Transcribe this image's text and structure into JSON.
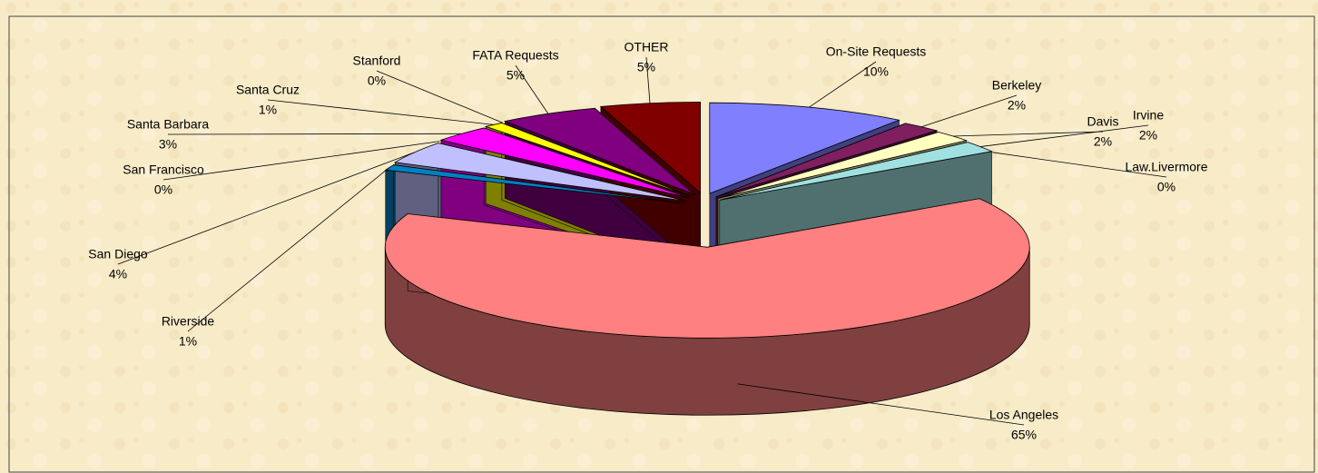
{
  "chart_data": {
    "type": "pie",
    "categories": [
      "On-Site Requests",
      "Berkeley",
      "Davis",
      "Irvine",
      "Law.Livermore",
      "Los Angeles",
      "Riverside",
      "San Diego",
      "San Francisco",
      "Santa Barbara",
      "Santa Cruz",
      "Stanford",
      "FATA Requests",
      "OTHER"
    ],
    "values": [
      10,
      2,
      2,
      2,
      0,
      65,
      1,
      4,
      0,
      3,
      1,
      0,
      5,
      5
    ],
    "value_labels": [
      "10%",
      "2%",
      "2%",
      "2%",
      "0%",
      "65%",
      "1%",
      "4%",
      "0%",
      "3%",
      "1%",
      "0%",
      "5%",
      "5%"
    ],
    "colors": [
      "#8080ff",
      "#7f1f5f",
      "#ffffc0",
      "#a0e0e0",
      "#330044",
      "#ff8080",
      "#0080c0",
      "#c0c0ff",
      "#000080",
      "#ff00ff",
      "#ffff00",
      "#00ffff",
      "#800080",
      "#800000"
    ]
  }
}
